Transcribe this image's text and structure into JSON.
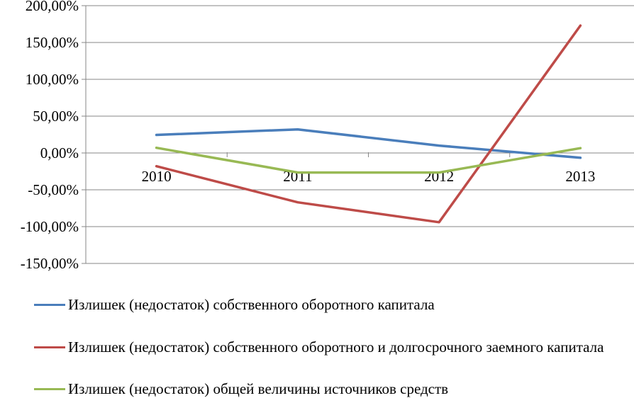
{
  "chart_data": {
    "type": "line",
    "categories": [
      "2010",
      "2011",
      "2012",
      "2013"
    ],
    "series": [
      {
        "name": "Излишек (недостаток) собственного оборотного капитала",
        "color": "#4a7ebb",
        "values": [
          24.5,
          32.0,
          10.0,
          -6.5
        ]
      },
      {
        "name": "Излишек (недостаток) собственного оборотного и долгосрочного заемного капитала",
        "color": "#be4b48",
        "values": [
          -18.0,
          -67.0,
          -94.0,
          173.0
        ]
      },
      {
        "name": "Излишек (недостаток) общей величины источников средств",
        "color": "#98b954",
        "values": [
          7.0,
          -26.5,
          -26.5,
          6.5
        ]
      }
    ],
    "yticks": [
      "200,00%",
      "150,00%",
      "100,00%",
      "50,00%",
      "0,00%",
      "-50,00%",
      "-100,00%",
      "-150,00%"
    ],
    "ylim": [
      -150,
      200
    ],
    "grid": true,
    "legend_position": "bottom"
  }
}
